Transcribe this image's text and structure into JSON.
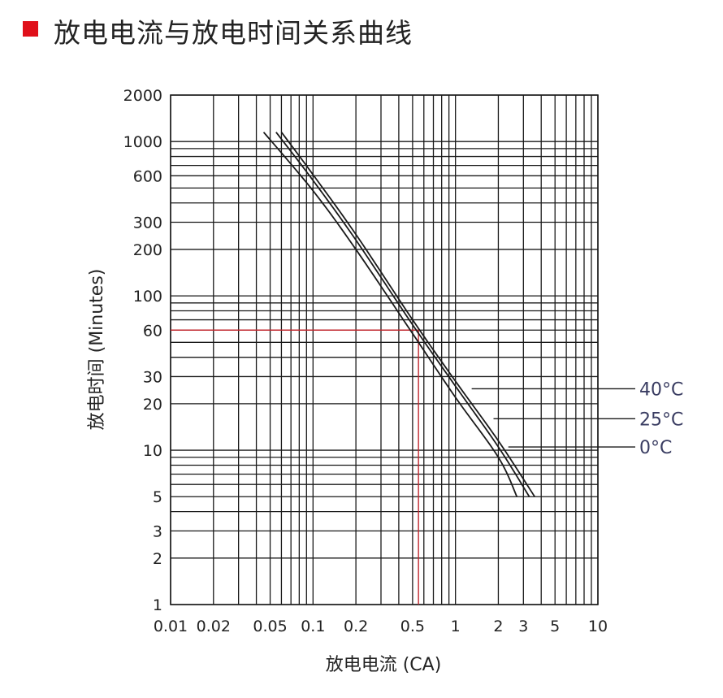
{
  "header": {
    "title": "放电电流与放电时间关系曲线",
    "marker_color": "#e0101a"
  },
  "chart_data": {
    "type": "line",
    "title": "放电电流与放电时间关系曲线",
    "xlabel": "放电电流 (CA)",
    "ylabel": "放电时间 (Minutes)",
    "xscale": "log",
    "yscale": "log",
    "xlim": [
      0.01,
      10
    ],
    "ylim": [
      1,
      2000
    ],
    "grid": true,
    "x_ticks": [
      {
        "value": 0.01,
        "label": "0.01"
      },
      {
        "value": 0.02,
        "label": "0.02"
      },
      {
        "value": 0.05,
        "label": "0.05"
      },
      {
        "value": 0.1,
        "label": "0.1"
      },
      {
        "value": 0.2,
        "label": "0.2"
      },
      {
        "value": 0.5,
        "label": "0.5"
      },
      {
        "value": 1,
        "label": "1"
      },
      {
        "value": 2,
        "label": "2"
      },
      {
        "value": 3,
        "label": "3"
      },
      {
        "value": 5,
        "label": "5"
      },
      {
        "value": 10,
        "label": "10"
      }
    ],
    "y_ticks": [
      {
        "value": 1,
        "label": "1"
      },
      {
        "value": 2,
        "label": "2"
      },
      {
        "value": 3,
        "label": "3"
      },
      {
        "value": 5,
        "label": "5"
      },
      {
        "value": 10,
        "label": "10"
      },
      {
        "value": 20,
        "label": "20"
      },
      {
        "value": 30,
        "label": "30"
      },
      {
        "value": 60,
        "label": "60"
      },
      {
        "value": 100,
        "label": "100"
      },
      {
        "value": 200,
        "label": "200"
      },
      {
        "value": 300,
        "label": "300"
      },
      {
        "value": 600,
        "label": "600"
      },
      {
        "value": 1000,
        "label": "1000"
      },
      {
        "value": 2000,
        "label": "2000"
      }
    ],
    "x_grid_values": [
      0.01,
      0.02,
      0.03,
      0.04,
      0.05,
      0.06,
      0.07,
      0.08,
      0.09,
      0.1,
      0.2,
      0.3,
      0.4,
      0.5,
      0.6,
      0.7,
      0.8,
      0.9,
      1,
      2,
      3,
      4,
      5,
      6,
      7,
      8,
      9,
      10
    ],
    "y_grid_values": [
      1,
      2,
      3,
      4,
      5,
      6,
      7,
      8,
      9,
      10,
      20,
      30,
      40,
      50,
      60,
      70,
      80,
      90,
      100,
      200,
      300,
      400,
      500,
      600,
      700,
      800,
      900,
      1000,
      2000
    ],
    "series": [
      {
        "name": "40°C",
        "x": [
          0.06,
          0.1,
          0.2,
          0.5,
          1,
          2,
          3.6
        ],
        "y": [
          1150,
          610,
          250,
          70,
          28,
          11.5,
          5
        ]
      },
      {
        "name": "25°C",
        "x": [
          0.055,
          0.1,
          0.2,
          0.5,
          1,
          2,
          3.3
        ],
        "y": [
          1150,
          560,
          230,
          65,
          26,
          10.5,
          5
        ]
      },
      {
        "name": "0°C",
        "x": [
          0.045,
          0.1,
          0.2,
          0.5,
          1,
          2,
          2.7
        ],
        "y": [
          1150,
          480,
          200,
          57,
          22,
          9,
          5
        ]
      }
    ],
    "legend": [
      {
        "label": "40°C",
        "anchor_y": 25,
        "anchor_x": 1.3
      },
      {
        "label": "25°C",
        "anchor_y": 16,
        "anchor_x": 1.85
      },
      {
        "label": "0°C",
        "anchor_y": 10.5,
        "anchor_x": 2.35
      }
    ],
    "annotation": {
      "x": 0.55,
      "y": 60,
      "color": "#c0272d"
    },
    "colors": {
      "grid": "#1a1a1a",
      "curve": "#1a1a1a",
      "legend_text": "#3a3d62"
    }
  }
}
